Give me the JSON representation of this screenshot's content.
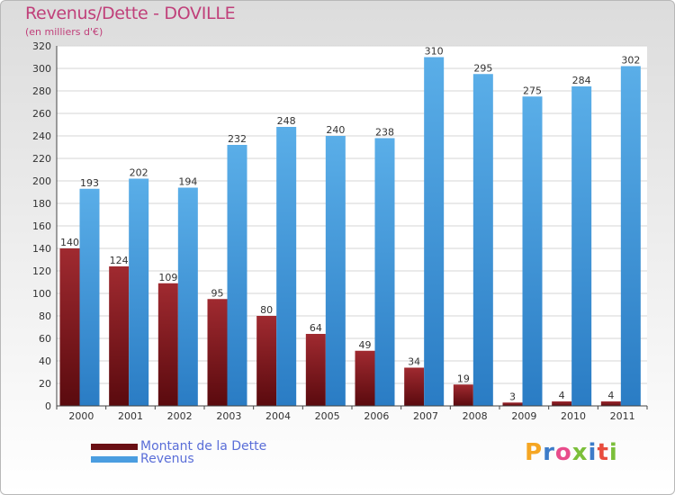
{
  "title": "Revenus/Dette - DOVILLE",
  "subtitle": "(en milliers d'€)",
  "logo": {
    "text": "Proxiti",
    "colors": [
      "#f5a623",
      "#3d7cc9",
      "#e84c8b",
      "#7bbf3a",
      "#3d7cc9",
      "#e84c3d",
      "#7bbf3a"
    ]
  },
  "chart_data": {
    "type": "bar",
    "categories": [
      "2000",
      "2001",
      "2002",
      "2003",
      "2004",
      "2005",
      "2006",
      "2007",
      "2008",
      "2009",
      "2010",
      "2011"
    ],
    "series": [
      {
        "name": "Montant de la Dette",
        "color": "#7a1a1f",
        "values": [
          140,
          124,
          109,
          95,
          80,
          64,
          49,
          34,
          19,
          3,
          4,
          4
        ]
      },
      {
        "name": "Revenus",
        "color": "#4a9de0",
        "values": [
          193,
          202,
          194,
          232,
          248,
          240,
          238,
          310,
          295,
          275,
          284,
          302
        ]
      }
    ],
    "ylim": [
      0,
      320
    ],
    "yticks": [
      0,
      20,
      40,
      60,
      80,
      100,
      120,
      140,
      160,
      180,
      200,
      220,
      240,
      260,
      280,
      300,
      320
    ],
    "grid": true,
    "legend": "bottom-left"
  }
}
